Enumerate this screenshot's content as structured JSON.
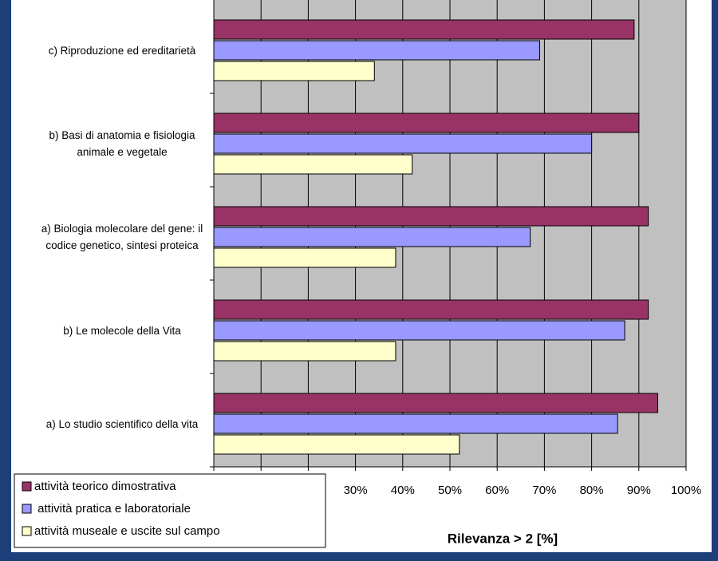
{
  "chart_data": {
    "type": "hbar",
    "xlabel": "Rilevanza > 2 [%]",
    "categories": [
      "c) Riproduzione ed ereditarietà",
      "b) Basi di anatomia e fisiologia animale e vegetale",
      "a) Biologia molecolare del gene: il codice genetico, sintesi proteica",
      "b) Le molecole della Vita",
      "a) Lo studio scientifico della vita"
    ],
    "series": [
      {
        "name": "attività teorico dimostrativa",
        "color": "#993366",
        "values": [
          89,
          90,
          92,
          92,
          94
        ]
      },
      {
        "name": " attività pratica e laboratoriale",
        "color": "#9999ff",
        "values": [
          69,
          80,
          67,
          87,
          85.5
        ]
      },
      {
        "name": "attività museale e uscite sul campo",
        "color": "#ffffcc",
        "values": [
          34,
          42,
          38.5,
          38.5,
          52
        ]
      }
    ],
    "xlim": [
      0,
      100
    ],
    "xticks": [
      {
        "value": 0,
        "label": null
      },
      {
        "value": 10,
        "label": null
      },
      {
        "value": 20,
        "label": null
      },
      {
        "value": 30,
        "label": "30%"
      },
      {
        "value": 40,
        "label": "40%"
      },
      {
        "value": 50,
        "label": "50%"
      },
      {
        "value": 60,
        "label": "60%"
      },
      {
        "value": 70,
        "label": "70%"
      },
      {
        "value": 80,
        "label": "80%"
      },
      {
        "value": 90,
        "label": "90%"
      },
      {
        "value": 100,
        "label": "100%"
      }
    ],
    "grid": true,
    "legend": "lower left"
  }
}
